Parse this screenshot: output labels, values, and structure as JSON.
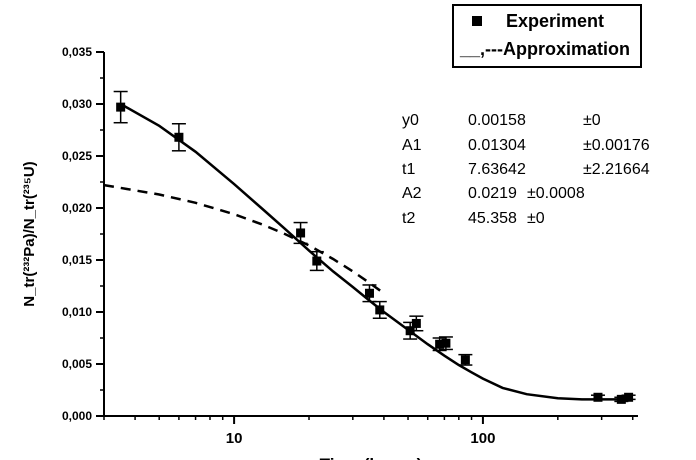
{
  "legend": {
    "experiment_label": "Experiment",
    "approximation_label": "__,---Approximation"
  },
  "params": [
    {
      "name": "y0",
      "value": "0.00158",
      "error": "±0"
    },
    {
      "name": "A1",
      "value": "0.01304",
      "error": "±0.00176"
    },
    {
      "name": "t1",
      "value": "7.63642",
      "error": "±2.21664"
    },
    {
      "name": "A2",
      "value": "0.0219",
      "error": "±0.0008"
    },
    {
      "name": "t2",
      "value": "45.358",
      "error": "±0"
    }
  ],
  "chart_data": {
    "type": "scatter",
    "title": "",
    "xlabel": "Time (hours)",
    "ylabel": "N_tr(²³²Pa)/N_tr(²³⁵U)",
    "x_scale": "log",
    "xlim": [
      3,
      420
    ],
    "ylim": [
      0,
      0.035
    ],
    "x_tick_labels": [
      "10",
      "100"
    ],
    "y_tick_labels": [
      "0,000",
      "0,005",
      "0,010",
      "0,015",
      "0,020",
      "0,025",
      "0,030",
      "0,035"
    ],
    "series": [
      {
        "name": "Experiment",
        "kind": "points_with_error_bars",
        "x": [
          3.5,
          6.0,
          18.5,
          21.5,
          35.0,
          38.5,
          51.0,
          54.0,
          67.0,
          71.0,
          85.0,
          290.0,
          360.0,
          385.0
        ],
        "y": [
          0.0297,
          0.0268,
          0.0176,
          0.0149,
          0.0118,
          0.0102,
          0.0082,
          0.0089,
          0.0069,
          0.007,
          0.0054,
          0.0018,
          0.0016,
          0.0018
        ],
        "yerr": [
          0.0015,
          0.0013,
          0.001,
          0.0009,
          0.0008,
          0.0008,
          0.0008,
          0.0007,
          0.0006,
          0.0006,
          0.0005,
          0.0002,
          0.0002,
          0.0002
        ]
      },
      {
        "name": "Approximation",
        "kind": "solid_line",
        "x": [
          3.5,
          5,
          7,
          10,
          13,
          16,
          20,
          25,
          30,
          35,
          40,
          50,
          60,
          70,
          80,
          90,
          100,
          120,
          150,
          200,
          250,
          300,
          350,
          400
        ],
        "y": [
          0.03,
          0.0279,
          0.0254,
          0.0223,
          0.0199,
          0.018,
          0.0159,
          0.0139,
          0.0124,
          0.0111,
          0.01,
          0.0083,
          0.0069,
          0.0058,
          0.0049,
          0.0042,
          0.0036,
          0.0027,
          0.0021,
          0.0017,
          0.0016,
          0.0016,
          0.0016,
          0.0016
        ]
      },
      {
        "name": "Approximation",
        "kind": "dashed_line",
        "x": [
          3,
          5,
          7,
          10,
          13,
          16,
          20,
          25,
          30,
          35,
          40
        ],
        "y": [
          0.0222,
          0.0213,
          0.0205,
          0.0194,
          0.0184,
          0.0175,
          0.0164,
          0.0151,
          0.0139,
          0.0128,
          0.0118
        ]
      }
    ]
  }
}
